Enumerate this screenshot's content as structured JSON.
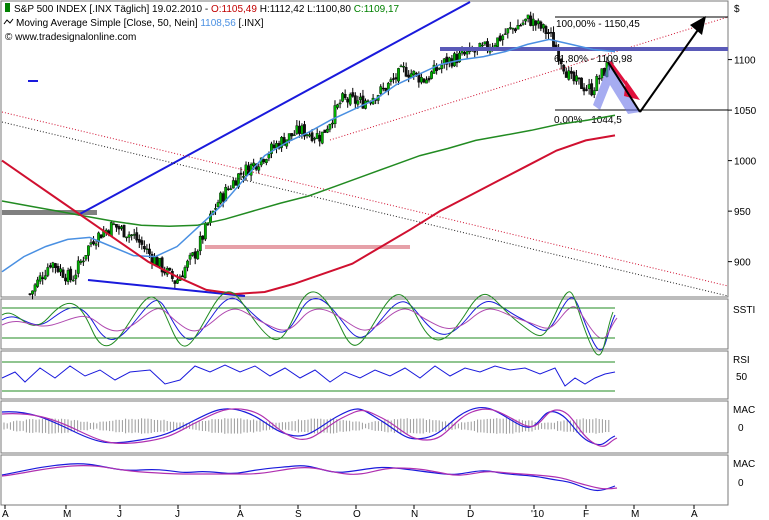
{
  "header": {
    "title": "S&P 500 INDEX [.INX  Täglich] 19.02.2010",
    "open": "O:1105,49",
    "high": "H:1112,42",
    "low": "L:1100,80",
    "close": "C:1109,17",
    "ma_label": "Moving Average Simple [Close, 50, Nein]",
    "ma_value": "1108,56",
    "ma_symbol": "[.INX]",
    "website": "© www.tradesignalonline.com",
    "colors": {
      "open": "#c00000",
      "close": "#008000",
      "ma": "#4a90e2"
    }
  },
  "chart_data": [
    {
      "type": "line",
      "title": "",
      "y_unit": "$",
      "y_ticks": [
        900,
        950,
        1000,
        1050,
        1100
      ],
      "ylim": [
        866,
        1157
      ],
      "grid": false,
      "annotations": {
        "fib_top": {
          "label": "100,00% - 1150,45",
          "value": 1150.45
        },
        "fib_mid": {
          "label": "61,80% - 1109,98",
          "value": 1109.98
        },
        "fib_low": {
          "label": "0,00% - 1044,5",
          "value": 1044.5
        }
      },
      "series": [
        {
          "color": "#000000",
          "style": "candles",
          "values": [
            868,
            900,
            882,
            922,
            936,
            925,
            902,
            880,
            910,
            958,
            985,
            1000,
            1018,
            1030,
            1024,
            1060,
            1058,
            1070,
            1090,
            1080,
            1098,
            1105,
            1112,
            1128,
            1140,
            1125,
            1080,
            1070,
            1100
          ]
        },
        {
          "color": "#4a90e2",
          "style": "line",
          "values": [
            890,
            905,
            915,
            922,
            924,
            915,
            906,
            905,
            915,
            935,
            955,
            980,
            1005,
            1018,
            1028,
            1040,
            1050,
            1060,
            1075,
            1085,
            1095,
            1100,
            1103,
            1108,
            1115,
            1120,
            1115,
            1110,
            1108
          ]
        },
        {
          "color": "#228b22",
          "style": "line",
          "values": [
            960,
            955,
            950,
            945,
            940,
            936,
            935,
            936,
            942,
            950,
            958,
            965,
            975,
            985,
            995,
            1005,
            1012,
            1020,
            1025,
            1030,
            1036,
            1040,
            1045
          ]
        },
        {
          "color": "#d01030",
          "style": "line",
          "values": [
            1000,
            980,
            960,
            940,
            920,
            900,
            885,
            872,
            868,
            870,
            878,
            888,
            898,
            915,
            932,
            950,
            965,
            980,
            995,
            1010,
            1020,
            1025
          ]
        }
      ]
    },
    {
      "type": "line",
      "title": "",
      "y_label": "SSTI",
      "y_ticks": []
    },
    {
      "type": "line",
      "title": "",
      "y_label": "RSI",
      "y_ticks": [
        50
      ]
    },
    {
      "type": "line",
      "title": "",
      "y_label": "MAC",
      "y_ticks": [
        0
      ]
    },
    {
      "type": "line",
      "title": "",
      "y_label": "MAC",
      "y_ticks": [
        0
      ]
    }
  ],
  "x_ticks": [
    "A",
    "M",
    "J",
    "J",
    "A",
    "S",
    "O",
    "N",
    "D",
    "'10",
    "F",
    "M",
    "A"
  ]
}
